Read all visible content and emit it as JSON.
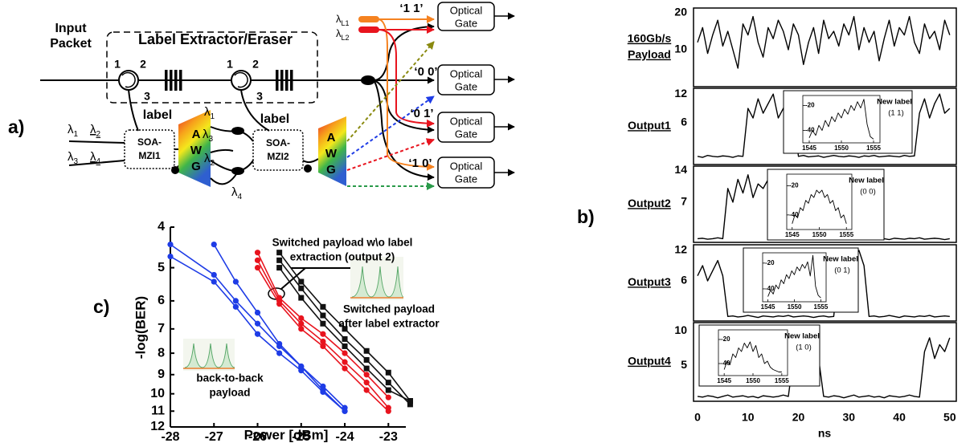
{
  "panel_labels": [
    "a)",
    "b)",
    "c)"
  ],
  "diagram": {
    "input": [
      "Input",
      "Packet"
    ],
    "box_title": "Label Extractor/Eraser",
    "ports": [
      "1",
      "2",
      "3",
      "1",
      "2",
      "3"
    ],
    "label_tags": [
      "label",
      "label"
    ],
    "lambdas": [
      {
        "base": "λ",
        "sub": "L1"
      },
      {
        "base": "λ",
        "sub": "L2"
      },
      {
        "base": "λ",
        "sub": "1"
      },
      {
        "base": "λ",
        "sub": "2"
      },
      {
        "base": "λ",
        "sub": "3"
      },
      {
        "base": "λ",
        "sub": "4"
      },
      {
        "base": "λ",
        "sub": "1"
      },
      {
        "base": "λ",
        "sub": "3"
      },
      {
        "base": "λ",
        "sub": "2"
      },
      {
        "base": "λ",
        "sub": "4"
      }
    ],
    "soa": [
      [
        "SOA-",
        "MZI1"
      ],
      [
        "SOA-",
        "MZI2"
      ]
    ],
    "awg": [
      [
        "A",
        "W",
        "G"
      ],
      [
        "A",
        "W",
        "G"
      ]
    ],
    "gates": [
      [
        "Optical",
        "Gate"
      ],
      [
        "Optical",
        "Gate"
      ],
      [
        "Optical",
        "Gate"
      ],
      [
        "Optical",
        "Gate"
      ]
    ],
    "codes": [
      "‘1 1’",
      "‘0 0’",
      "‘0 1’",
      "‘1 0’"
    ]
  },
  "chart_data": [
    {
      "type": "line",
      "yscale": "log",
      "y_inverted": true,
      "xlim": [
        -28,
        -22.6
      ],
      "ylim": [
        4,
        12
      ],
      "xticks": [
        -28,
        -27,
        -26,
        -25,
        -24,
        -23
      ],
      "yticks": [
        4,
        5,
        6,
        7,
        8,
        9,
        10,
        11,
        12
      ],
      "xlabel": "Power [dBm]",
      "ylabel": "-log(BER)",
      "series": [
        {
          "color": "#1e3ce6",
          "marker": "circle",
          "x": [
            -28,
            -27,
            -26.5,
            -26,
            -25.5,
            -25,
            -24.5,
            -24
          ],
          "values": [
            4.4,
            5.2,
            6.0,
            6.8,
            7.7,
            8.6,
            9.6,
            10.8
          ]
        },
        {
          "color": "#1e3ce6",
          "marker": "circle",
          "x": [
            -27,
            -26.5,
            -26,
            -25.5,
            -25,
            -24.5,
            -24
          ],
          "values": [
            4.4,
            5.4,
            6.4,
            7.6,
            8.6,
            9.8,
            11.0
          ]
        },
        {
          "color": "#1e3ce6",
          "marker": "circle",
          "x": [
            -28,
            -27,
            -26.5,
            -26,
            -25.5,
            -25,
            -24.5,
            -24
          ],
          "values": [
            4.7,
            5.4,
            6.2,
            7.2,
            8.0,
            8.8,
            9.9,
            11.0
          ]
        },
        {
          "color": "#e8141e",
          "marker": "circle",
          "x": [
            -26,
            -25.5,
            -25,
            -24.5,
            -24,
            -23.5,
            -23
          ],
          "values": [
            4.6,
            5.9,
            6.6,
            7.2,
            8.0,
            9.0,
            10.2
          ]
        },
        {
          "color": "#e8141e",
          "marker": "circle",
          "x": [
            -26,
            -25.5,
            -25,
            -24.5,
            -24,
            -23.5,
            -23
          ],
          "values": [
            4.8,
            6.0,
            6.8,
            7.5,
            8.4,
            9.4,
            10.8
          ]
        },
        {
          "color": "#e8141e",
          "marker": "circle",
          "x": [
            -26,
            -25.5,
            -25,
            -24.5,
            -24,
            -23.5,
            -23
          ],
          "values": [
            5.0,
            6.1,
            7.0,
            7.7,
            8.7,
            9.8,
            11.0
          ]
        },
        {
          "color": "#111111",
          "marker": "square",
          "x": [
            -25.5,
            -25,
            -24.5,
            -24,
            -23.5,
            -23,
            -22.5
          ],
          "values": [
            4.6,
            5.4,
            6.2,
            7.0,
            7.9,
            8.9,
            10.4
          ]
        },
        {
          "color": "#111111",
          "marker": "square",
          "x": [
            -25.5,
            -25,
            -24.5,
            -24,
            -23.5,
            -23,
            -22.5
          ],
          "values": [
            4.8,
            5.6,
            6.5,
            7.4,
            8.3,
            9.4,
            10.6
          ]
        },
        {
          "color": "#111111",
          "marker": "square",
          "x": [
            -25.5,
            -25,
            -24.5,
            -24,
            -23.5,
            -23,
            -22.5
          ],
          "values": [
            5.0,
            5.9,
            6.8,
            7.7,
            8.7,
            9.8,
            10.4
          ]
        }
      ],
      "annotations": [
        {
          "lines": [
            "Switched payload w\\o label",
            "extraction (output 2)"
          ]
        },
        {
          "lines": [
            "Switched payload",
            "after label extractor"
          ]
        },
        {
          "lines": [
            "back-to-back",
            "payload"
          ]
        }
      ]
    },
    {
      "type": "line",
      "title": [
        "160Gb/s",
        "Payload"
      ],
      "frame": true,
      "color": "#000000",
      "xlim": [
        -0.8,
        51.3
      ],
      "ylim": [
        0,
        21.3
      ],
      "yticks": [
        10,
        20
      ],
      "x": [
        0,
        1,
        2,
        3,
        4,
        5,
        6,
        7,
        8,
        9,
        10,
        11,
        12,
        13,
        14,
        15,
        16,
        17,
        18,
        19,
        20,
        21,
        22,
        23,
        24,
        25,
        26,
        27,
        28,
        29,
        30,
        31,
        32,
        33,
        34,
        35,
        36,
        37,
        38,
        39,
        40,
        41,
        42,
        43,
        44,
        45,
        46,
        47,
        48,
        49,
        50
      ],
      "values": [
        12,
        16,
        9,
        14,
        18,
        11,
        15,
        10,
        5,
        17,
        14,
        19,
        12,
        8,
        16,
        13,
        18,
        15,
        10,
        17,
        14,
        6,
        12,
        16,
        9,
        18,
        13,
        15,
        11,
        17,
        14,
        19,
        10,
        16,
        12,
        15,
        7,
        13,
        18,
        11,
        16,
        14,
        19,
        12,
        9,
        17,
        13,
        15,
        10,
        18,
        14
      ]
    },
    {
      "type": "line",
      "title": [
        "Output1"
      ],
      "frame": true,
      "color": "#000000",
      "xlim": [
        -0.8,
        51.3
      ],
      "ylim": [
        -2.7,
        13.2
      ],
      "yticks": [
        6,
        12
      ],
      "x": [
        0,
        1,
        2,
        3,
        4,
        5,
        6,
        7,
        8,
        9,
        10,
        11,
        12,
        13,
        14,
        15,
        16,
        17,
        18,
        19,
        20,
        21,
        22,
        23,
        24,
        25,
        26,
        27,
        28,
        29,
        30,
        31,
        32,
        33,
        34,
        35,
        36,
        37,
        38,
        39,
        40,
        41,
        42,
        43,
        44,
        45,
        46,
        47,
        48,
        49,
        50
      ],
      "values": [
        -1,
        -1.2,
        -0.8,
        -1,
        -1.1,
        -0.9,
        -1,
        -1.2,
        -0.9,
        -1,
        9,
        7,
        11,
        8,
        10,
        12,
        7,
        9,
        11,
        8,
        -1,
        -0.8,
        -1.1,
        -1,
        -0.9,
        -1.2,
        -1,
        -0.8,
        -1,
        -1.1,
        -0.9,
        -1,
        -1.2,
        -0.9,
        -1,
        -0.8,
        -1.1,
        -1,
        -0.9,
        -1,
        -1.1,
        -0.8,
        -1,
        -0.9,
        8,
        11,
        7,
        10,
        12,
        8,
        9
      ],
      "inset": {
        "type": "line",
        "frame": true,
        "color": "#000000",
        "xlim": [
          1544,
          1556
        ],
        "ylim": [
          -50,
          -12
        ],
        "xticks": [
          1545,
          1550,
          1555
        ],
        "yticks": [
          -20,
          -40
        ],
        "x": [
          1545,
          1545.5,
          1546,
          1546.5,
          1547,
          1547.5,
          1548,
          1548.5,
          1549,
          1549.5,
          1550,
          1550.5,
          1551,
          1551.5,
          1552,
          1552.5,
          1553,
          1553.5,
          1554,
          1554.5,
          1555
        ],
        "values": [
          -46,
          -40,
          -44,
          -36,
          -40,
          -32,
          -37,
          -29,
          -33,
          -26,
          -30,
          -23,
          -27,
          -20,
          -24,
          -17,
          -22,
          -15,
          -35,
          -45,
          -47
        ],
        "label": "New label",
        "code": "(1 1)"
      }
    },
    {
      "type": "line",
      "title": [
        "Output2"
      ],
      "frame": true,
      "color": "#000000",
      "xlim": [
        -0.8,
        51.3
      ],
      "ylim": [
        -1.8,
        14.9
      ],
      "yticks": [
        7,
        14
      ],
      "x": [
        0,
        1,
        2,
        3,
        4,
        5,
        6,
        7,
        8,
        9,
        10,
        11,
        12,
        13,
        14,
        15,
        16,
        17,
        18,
        19,
        20,
        21,
        22,
        23,
        24,
        25,
        26,
        27,
        28,
        29,
        30,
        31,
        32,
        33,
        34,
        35,
        36,
        37,
        38,
        39,
        40,
        41,
        42,
        43,
        44,
        45,
        46,
        47,
        48,
        49,
        50
      ],
      "values": [
        -1,
        -0.9,
        -1.1,
        -1,
        -0.8,
        -1,
        10,
        7,
        12,
        9,
        13,
        8,
        11,
        10,
        12,
        -1,
        -0.9,
        -1.1,
        -1,
        -1.2,
        -0.9,
        -1,
        -0.8,
        -1.1,
        -1,
        12,
        8,
        13,
        9,
        11,
        13,
        10,
        -1,
        -0.9,
        -1.1,
        -1,
        -0.8,
        -1,
        -1.2,
        -0.9,
        -1,
        -1.1,
        -0.9,
        -1,
        -0.8,
        -1.1,
        -1,
        -0.9,
        -1,
        -1.2,
        -1
      ],
      "inset": {
        "type": "line",
        "frame": true,
        "color": "#000000",
        "xlim": [
          1544,
          1556
        ],
        "ylim": [
          -50,
          -12
        ],
        "xticks": [
          1545,
          1550,
          1555
        ],
        "yticks": [
          -20,
          -40
        ],
        "x": [
          1545,
          1545.5,
          1546,
          1546.5,
          1547,
          1547.5,
          1548,
          1548.5,
          1549,
          1549.5,
          1550,
          1550.5,
          1551,
          1551.5,
          1552,
          1552.5,
          1553,
          1553.5,
          1554,
          1554.5,
          1555
        ],
        "values": [
          -46,
          -40,
          -42,
          -35,
          -37,
          -30,
          -32,
          -26,
          -28,
          -23,
          -25,
          -23,
          -28,
          -26,
          -32,
          -30,
          -37,
          -35,
          -42,
          -40,
          -46
        ],
        "label": "New label",
        "code": "(0 0)"
      }
    },
    {
      "type": "line",
      "title": [
        "Output3"
      ],
      "frame": true,
      "color": "#000000",
      "xlim": [
        -0.8,
        51.3
      ],
      "ylim": [
        -1.9,
        13.1
      ],
      "yticks": [
        6,
        12
      ],
      "x": [
        0,
        1,
        2,
        3,
        4,
        5,
        6,
        7,
        8,
        9,
        10,
        11,
        12,
        13,
        14,
        15,
        16,
        17,
        18,
        19,
        20,
        21,
        22,
        23,
        24,
        25,
        26,
        27,
        28,
        29,
        30,
        31,
        32,
        33,
        34,
        35,
        36,
        37,
        38,
        39,
        40,
        41,
        42,
        43,
        44,
        45,
        46,
        47,
        48,
        49,
        50
      ],
      "values": [
        7,
        9,
        6,
        8,
        10,
        7,
        -1,
        -0.9,
        -1.1,
        -1,
        -0.8,
        -1,
        -1.2,
        -0.9,
        -1,
        -1.1,
        -0.9,
        -1,
        -0.8,
        -1.1,
        -1,
        -0.9,
        -1,
        -1.2,
        -1,
        -0.9,
        -1.1,
        -1,
        9,
        11,
        8,
        10,
        12,
        9,
        -1,
        -0.9,
        -1.1,
        -1,
        -0.8,
        -1,
        -1.2,
        -0.9,
        -1,
        -1.1,
        -0.9,
        -1,
        -0.8,
        -1.1,
        -1,
        -0.9,
        -1
      ],
      "inset": {
        "type": "line",
        "frame": true,
        "color": "#000000",
        "xlim": [
          1544,
          1556
        ],
        "ylim": [
          -50,
          -12
        ],
        "xticks": [
          1545,
          1550,
          1555
        ],
        "yticks": [
          -20,
          -40
        ],
        "x": [
          1545,
          1545.5,
          1546,
          1546.5,
          1547,
          1547.5,
          1548,
          1548.5,
          1549,
          1549.5,
          1550,
          1550.5,
          1551,
          1551.5,
          1552,
          1552.5,
          1553,
          1553.5,
          1554,
          1554.5,
          1555
        ],
        "values": [
          -46,
          -41,
          -44,
          -37,
          -40,
          -33,
          -36,
          -29,
          -32,
          -26,
          -29,
          -23,
          -26,
          -21,
          -24,
          -19,
          -30,
          -14,
          -38,
          -45,
          -47
        ],
        "label": "New label",
        "code": "(0 1)"
      }
    },
    {
      "type": "line",
      "title": [
        "Output4"
      ],
      "frame": true,
      "color": "#000000",
      "xlim": [
        -0.8,
        51.3
      ],
      "ylim": [
        -0.2,
        11.2
      ],
      "yticks": [
        5,
        10
      ],
      "xticks": [
        0,
        10,
        20,
        30,
        40,
        50
      ],
      "xlabel": "ns",
      "x": [
        0,
        1,
        2,
        3,
        4,
        5,
        6,
        7,
        8,
        9,
        10,
        11,
        12,
        13,
        14,
        15,
        16,
        17,
        18,
        19,
        20,
        21,
        22,
        23,
        24,
        25,
        26,
        27,
        28,
        29,
        30,
        31,
        32,
        33,
        34,
        35,
        36,
        37,
        38,
        39,
        40,
        41,
        42,
        43,
        44,
        45,
        46,
        47,
        48,
        49,
        50
      ],
      "values": [
        0.5,
        0.4,
        0.6,
        0.5,
        0.3,
        0.5,
        0.7,
        0.4,
        0.5,
        0.6,
        0.4,
        0.5,
        0.3,
        0.6,
        0.5,
        0.4,
        0.5,
        0.7,
        0.5,
        6,
        8,
        5,
        7,
        9,
        6,
        0.5,
        0.4,
        0.6,
        0.5,
        0.3,
        0.5,
        0.7,
        0.4,
        0.5,
        0.6,
        0.4,
        0.5,
        0.3,
        0.6,
        0.5,
        0.4,
        0.5,
        0.7,
        0.5,
        0.4,
        7,
        9,
        6,
        8,
        7,
        9
      ],
      "inset": {
        "type": "line",
        "frame": true,
        "color": "#000000",
        "xlim": [
          1544,
          1556
        ],
        "ylim": [
          -50,
          -12
        ],
        "xticks": [
          1545,
          1550,
          1555
        ],
        "yticks": [
          -20,
          -40
        ],
        "x": [
          1545,
          1545.5,
          1546,
          1546.5,
          1547,
          1547.5,
          1548,
          1548.5,
          1549,
          1549.5,
          1550,
          1550.5,
          1551,
          1551.5,
          1552,
          1552.5,
          1553,
          1553.5,
          1554,
          1554.5,
          1555
        ],
        "values": [
          -45,
          -38,
          -41,
          -32,
          -35,
          -27,
          -30,
          -23,
          -27,
          -22,
          -30,
          -25,
          -35,
          -32,
          -40,
          -38,
          -43,
          -45,
          -46,
          -47,
          -47
        ],
        "label": "New label",
        "code": "(1 0)"
      }
    }
  ]
}
